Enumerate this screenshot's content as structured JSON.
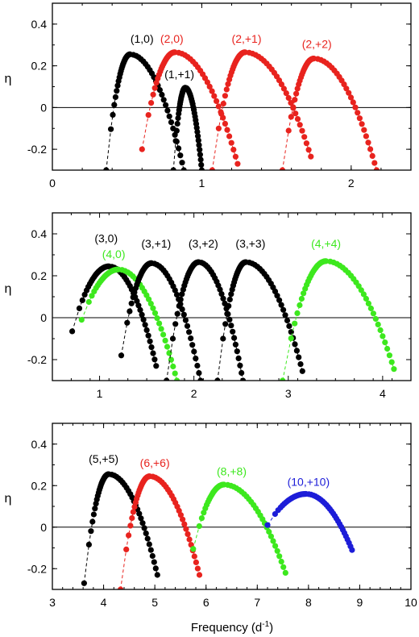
{
  "figure": {
    "xlabel": "Frequency (d",
    "xlabel_sup": "-1",
    "xlabel_close": ")",
    "ylabel": "η"
  },
  "chart_data": [
    {
      "type": "scatter",
      "xlim": [
        0,
        2.4
      ],
      "ylim": [
        -0.3,
        0.5
      ],
      "xticks": [
        0,
        1,
        2
      ],
      "yticks": [
        -0.2,
        0,
        0.2,
        0.4
      ],
      "ylabel": "η",
      "zero_line": true,
      "series": [
        {
          "label": "(1,0)",
          "color": "#000000",
          "peak": [
            0.52,
            0.255
          ],
          "left": [
            0.36,
            -0.3
          ],
          "right": [
            0.88,
            -0.3
          ],
          "label_pos": [
            0.6,
            0.31
          ]
        },
        {
          "label": "(1,+1)",
          "color": "#000000",
          "peak": [
            0.89,
            0.095
          ],
          "left": [
            0.81,
            -0.3
          ],
          "right": [
            1.0,
            -0.3
          ],
          "label_pos": [
            0.85,
            0.14
          ]
        },
        {
          "label": "(2,0)",
          "color": "#e8231e",
          "peak": [
            0.82,
            0.265
          ],
          "left": [
            0.6,
            -0.2
          ],
          "right": [
            1.24,
            -0.27
          ],
          "label_pos": [
            0.8,
            0.31
          ]
        },
        {
          "label": "(2,+1)",
          "color": "#e8231e",
          "peak": [
            1.29,
            0.265
          ],
          "left": [
            1.07,
            -0.3
          ],
          "right": [
            1.73,
            -0.235
          ],
          "label_pos": [
            1.3,
            0.31
          ]
        },
        {
          "label": "(2,+2)",
          "color": "#e8231e",
          "peak": [
            1.75,
            0.235
          ],
          "left": [
            1.54,
            -0.3
          ],
          "right": [
            2.17,
            -0.3
          ],
          "label_pos": [
            1.77,
            0.285
          ]
        }
      ]
    },
    {
      "type": "scatter",
      "xlim": [
        0.5,
        4.3
      ],
      "ylim": [
        -0.3,
        0.5
      ],
      "xticks": [
        1,
        2,
        3,
        4
      ],
      "yticks": [
        -0.2,
        0,
        0.2,
        0.4
      ],
      "ylabel": "η",
      "zero_line": true,
      "series": [
        {
          "label": "(3,0)",
          "color": "#000000",
          "peak": [
            1.1,
            0.245
          ],
          "left": [
            0.71,
            -0.065
          ],
          "right": [
            1.6,
            -0.23
          ],
          "label_pos": [
            1.07,
            0.36
          ]
        },
        {
          "label": "(4,0)",
          "color": "#3de81e",
          "peak": [
            1.2,
            0.23
          ],
          "left": [
            0.81,
            -0.01
          ],
          "right": [
            1.82,
            -0.3
          ],
          "label_pos": [
            1.15,
            0.285
          ]
        },
        {
          "label": "(3,+1)",
          "color": "#000000",
          "peak": [
            1.55,
            0.26
          ],
          "left": [
            1.23,
            -0.18
          ],
          "right": [
            2.07,
            -0.3
          ],
          "label_pos": [
            1.6,
            0.335
          ]
        },
        {
          "label": "(3,+2)",
          "color": "#000000",
          "peak": [
            2.05,
            0.265
          ],
          "left": [
            1.71,
            -0.3
          ],
          "right": [
            2.52,
            -0.3
          ],
          "label_pos": [
            2.1,
            0.335
          ]
        },
        {
          "label": "(3,+3)",
          "color": "#000000",
          "peak": [
            2.55,
            0.265
          ],
          "left": [
            2.25,
            -0.3
          ],
          "right": [
            3.15,
            -0.255
          ],
          "label_pos": [
            2.6,
            0.335
          ]
        },
        {
          "label": "(4,+4)",
          "color": "#3de81e",
          "peak": [
            3.4,
            0.27
          ],
          "left": [
            2.94,
            -0.3
          ],
          "right": [
            4.12,
            -0.245
          ],
          "label_pos": [
            3.4,
            0.335
          ]
        }
      ]
    },
    {
      "type": "scatter",
      "xlim": [
        3,
        10
      ],
      "ylim": [
        -0.3,
        0.5
      ],
      "xticks": [
        3,
        4,
        5,
        6,
        7,
        8,
        9,
        10
      ],
      "yticks": [
        -0.2,
        0,
        0.2,
        0.4
      ],
      "ylabel": "η",
      "zero_line": true,
      "series": [
        {
          "label": "(5,+5)",
          "color": "#000000",
          "peak": [
            4.1,
            0.255
          ],
          "left": [
            3.62,
            -0.27
          ],
          "right": [
            5.05,
            -0.23
          ],
          "label_pos": [
            4.0,
            0.31
          ]
        },
        {
          "label": "(6,+6)",
          "color": "#e8231e",
          "peak": [
            4.9,
            0.245
          ],
          "left": [
            4.33,
            -0.3
          ],
          "right": [
            5.87,
            -0.23
          ],
          "label_pos": [
            5.0,
            0.29
          ]
        },
        {
          "label": "(8,+8)",
          "color": "#3de81e",
          "peak": [
            6.35,
            0.205
          ],
          "left": [
            5.75,
            -0.105
          ],
          "right": [
            7.55,
            -0.22
          ],
          "label_pos": [
            6.5,
            0.25
          ]
        },
        {
          "label": "(10,+10)",
          "color": "#1d1dd8",
          "peak": [
            7.95,
            0.16
          ],
          "left": [
            7.2,
            0.01
          ],
          "right": [
            8.85,
            -0.11
          ],
          "label_pos": [
            8.0,
            0.2
          ]
        }
      ]
    }
  ]
}
